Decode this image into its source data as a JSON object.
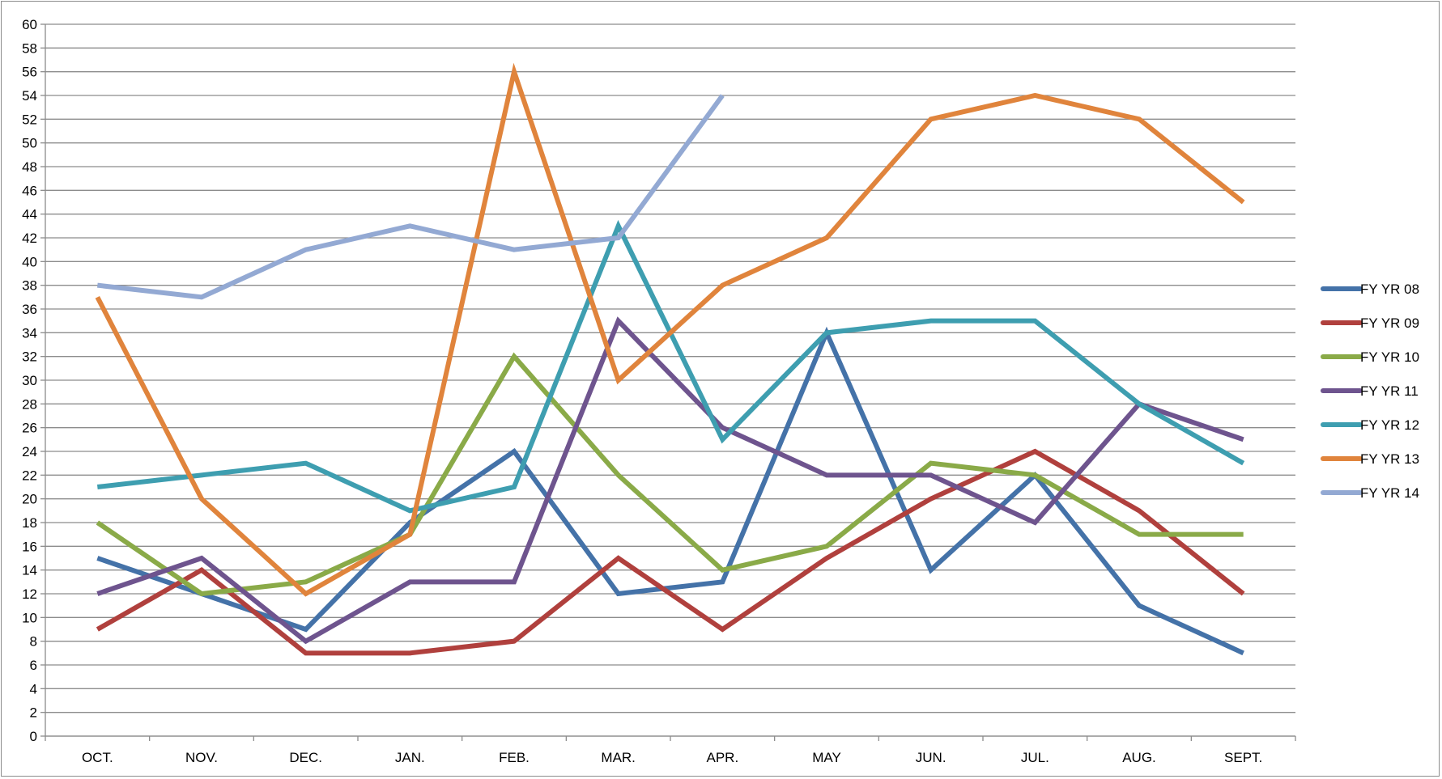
{
  "chart_data": {
    "type": "line",
    "title": "",
    "xlabel": "",
    "ylabel": "",
    "ylim": [
      0,
      60
    ],
    "y_tick_step": 2,
    "grid": "horizontal",
    "legend_position": "right",
    "categories": [
      "OCT.",
      "NOV.",
      "DEC.",
      "JAN.",
      "FEB.",
      "MAR.",
      "APR.",
      "MAY",
      "JUN.",
      "JUL.",
      "AUG.",
      "SEPT."
    ],
    "series": [
      {
        "name": "FY YR 08",
        "color": "#4472a8",
        "values": [
          15,
          12,
          9,
          18,
          24,
          12,
          13,
          34,
          14,
          22,
          11,
          7
        ]
      },
      {
        "name": "FY YR 09",
        "color": "#b0403d",
        "values": [
          9,
          14,
          7,
          7,
          8,
          15,
          9,
          15,
          20,
          24,
          19,
          12
        ]
      },
      {
        "name": "FY YR 10",
        "color": "#8aaa48",
        "values": [
          18,
          12,
          13,
          17,
          32,
          22,
          14,
          16,
          23,
          22,
          17,
          17
        ]
      },
      {
        "name": "FY YR 11",
        "color": "#6e548e",
        "values": [
          12,
          15,
          8,
          13,
          13,
          35,
          26,
          22,
          22,
          18,
          28,
          25
        ]
      },
      {
        "name": "FY YR 12",
        "color": "#3e9eb0",
        "values": [
          21,
          22,
          23,
          19,
          21,
          43,
          25,
          34,
          35,
          35,
          28,
          23
        ]
      },
      {
        "name": "FY YR 13",
        "color": "#e0843c",
        "values": [
          37,
          20,
          12,
          17,
          56,
          30,
          38,
          42,
          52,
          54,
          52,
          45
        ]
      },
      {
        "name": "FY YR 14",
        "color": "#93a9d3",
        "values": [
          38,
          37,
          41,
          43,
          41,
          42,
          54,
          null,
          null,
          null,
          null,
          null
        ]
      }
    ]
  }
}
